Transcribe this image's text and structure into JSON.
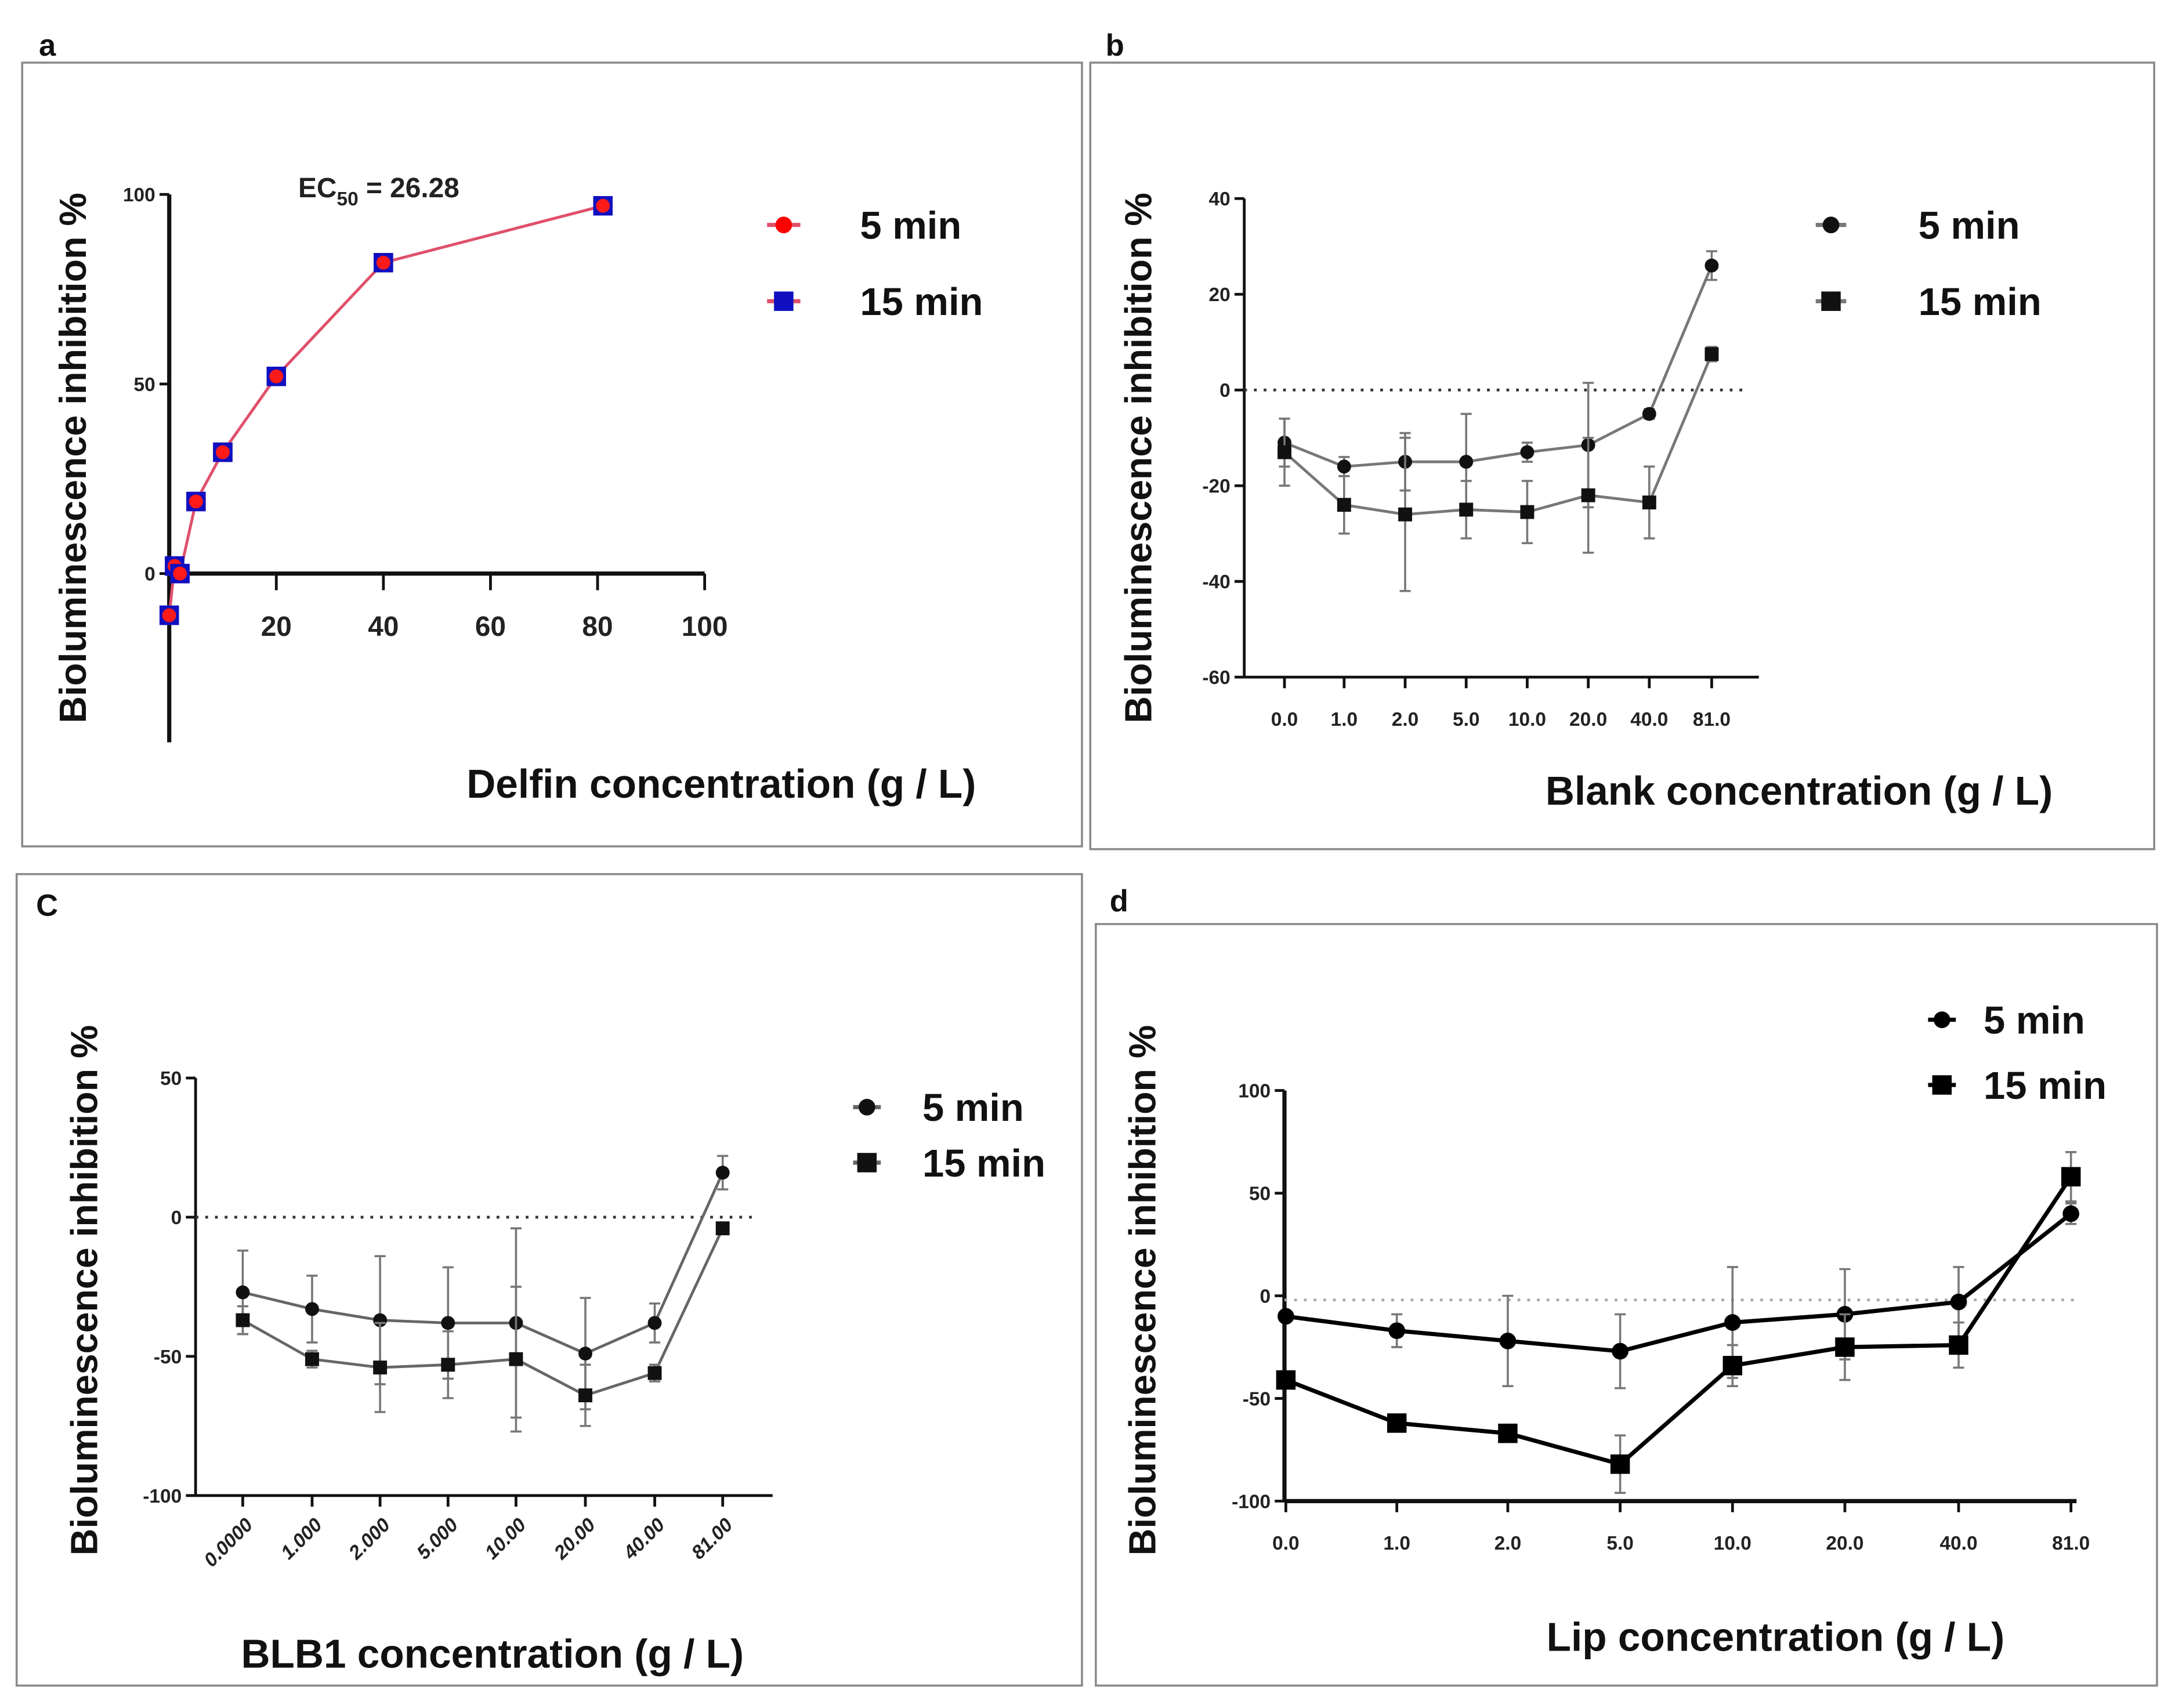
{
  "chart_data": [
    {
      "panel": "a",
      "type": "line",
      "xlabel": "Delfin concentration (g / L)",
      "ylabel": "Bioluminescence inhibition %",
      "annotation": {
        "prefix": "EC",
        "sub": "50",
        "suffix": " = 26.28"
      },
      "x_numeric": true,
      "x": [
        0,
        1,
        2,
        5,
        10,
        20,
        40,
        81
      ],
      "xticks": [
        "20",
        "40",
        "60",
        "80",
        "100"
      ],
      "xtick_values": [
        20,
        40,
        60,
        80,
        100
      ],
      "xlim": [
        0,
        100
      ],
      "ylim": [
        -20,
        100
      ],
      "yticks": [
        "100",
        "50",
        "0"
      ],
      "ytick_values": [
        100,
        50,
        0
      ],
      "zero_line": "solid",
      "series": [
        {
          "name": "5 min",
          "marker": "circle",
          "color": "#ff0000",
          "line_color": "#e0506a",
          "values": [
            -11,
            2,
            0,
            19,
            32,
            52,
            82,
            97
          ]
        },
        {
          "name": "15 min",
          "marker": "square",
          "color": "#1010c0",
          "line_color": "#e0506a",
          "values": [
            -11,
            2,
            0,
            19,
            32,
            52,
            82,
            97
          ]
        }
      ]
    },
    {
      "panel": "b",
      "type": "line",
      "xlabel": "Blank concentration (g / L)",
      "ylabel": "Bioluminescence inhibition %",
      "categories": [
        "0.0",
        "1.0",
        "2.0",
        "5.0",
        "10.0",
        "20.0",
        "40.0",
        "81.0"
      ],
      "ylim": [
        -60,
        40
      ],
      "yticks": [
        "40",
        "20",
        "0",
        "-20",
        "-40",
        "-60"
      ],
      "ytick_values": [
        40,
        20,
        0,
        -20,
        -40,
        -60
      ],
      "zero_line": "dotted",
      "series": [
        {
          "name": "5 min",
          "marker": "circle",
          "color": "#111111",
          "line_color": "#777777",
          "values": [
            -11,
            -16,
            -15,
            -15,
            -13,
            -11.5,
            -5,
            26
          ],
          "errors": [
            5,
            2,
            6,
            10,
            2,
            13,
            1,
            3
          ]
        },
        {
          "name": "15 min",
          "marker": "square",
          "color": "#111111",
          "line_color": "#777777",
          "values": [
            -13,
            -24,
            -26,
            -25,
            -25.5,
            -22,
            -23.5,
            7.5
          ],
          "errors": [
            7,
            6,
            16,
            6,
            6.5,
            12,
            7.5,
            1.5
          ]
        }
      ]
    },
    {
      "panel": "C",
      "type": "line",
      "xlabel": "BLB1 concentration (g / L)",
      "ylabel": "Bioluminescence inhibition %",
      "categories": [
        "0.0000",
        "1.000",
        "2.000",
        "5.000",
        "10.00",
        "20.00",
        "40.00",
        "81.00"
      ],
      "ylim": [
        -100,
        50
      ],
      "yticks": [
        "50",
        "0",
        "-50",
        "-100"
      ],
      "ytick_values": [
        50,
        0,
        -50,
        -100
      ],
      "zero_line": "dotted",
      "series": [
        {
          "name": "5 min",
          "marker": "circle",
          "color": "#111111",
          "line_color": "#666666",
          "values": [
            -27,
            -33,
            -37,
            -38,
            -38,
            -49,
            -38,
            16
          ],
          "errors": [
            15,
            12,
            23,
            20,
            34,
            20,
            7,
            6
          ]
        },
        {
          "name": "15 min",
          "marker": "square",
          "color": "#111111",
          "line_color": "#666666",
          "values": [
            -37,
            -51,
            -54,
            -53,
            -51,
            -64,
            -56,
            -4
          ],
          "errors": [
            5,
            3,
            16,
            12,
            26,
            11,
            3,
            2
          ]
        }
      ]
    },
    {
      "panel": "d",
      "type": "line",
      "xlabel": "Lip concentration (g / L)",
      "ylabel": "Bioluminescence inhibition %",
      "categories": [
        "0.0",
        "1.0",
        "2.0",
        "5.0",
        "10.0",
        "20.0",
        "40.0",
        "81.0"
      ],
      "ylim": [
        -100,
        100
      ],
      "yticks": [
        "100",
        "50",
        "0",
        "-50",
        "-100"
      ],
      "ytick_values": [
        100,
        50,
        0,
        -50,
        -100
      ],
      "zero_line": "light-dotted",
      "series": [
        {
          "name": "5 min",
          "marker": "circle",
          "color": "#000000",
          "line_color": "#000000",
          "values": [
            -10,
            -17,
            -22,
            -27,
            -13,
            -9,
            -3,
            40
          ],
          "errors": [
            0,
            8,
            22,
            18,
            27,
            22,
            17,
            5
          ]
        },
        {
          "name": "15 min",
          "marker": "square",
          "color": "#000000",
          "line_color": "#000000",
          "values": [
            -41,
            -62,
            -67,
            -82,
            -34,
            -25,
            -24,
            58
          ],
          "errors": [
            0,
            3,
            3,
            14,
            10,
            16,
            11,
            12
          ]
        }
      ]
    }
  ]
}
